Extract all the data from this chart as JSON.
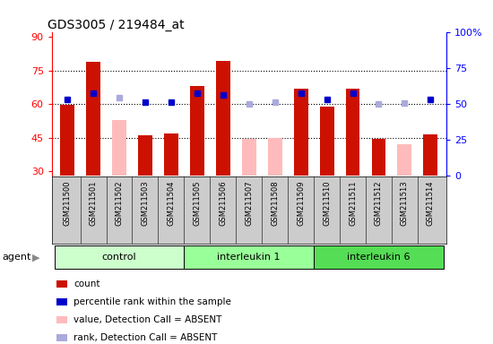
{
  "title": "GDS3005 / 219484_at",
  "samples": [
    "GSM211500",
    "GSM211501",
    "GSM211502",
    "GSM211503",
    "GSM211504",
    "GSM211505",
    "GSM211506",
    "GSM211507",
    "GSM211508",
    "GSM211509",
    "GSM211510",
    "GSM211511",
    "GSM211512",
    "GSM211513",
    "GSM211514"
  ],
  "count_values": [
    59.5,
    79.0,
    null,
    46.0,
    47.0,
    68.0,
    79.5,
    null,
    null,
    67.0,
    59.0,
    67.0,
    44.5,
    null,
    46.5
  ],
  "absent_value_values": [
    null,
    null,
    53.0,
    null,
    null,
    null,
    null,
    44.5,
    45.0,
    null,
    null,
    null,
    null,
    42.0,
    null
  ],
  "percentile_rank_present": [
    62.0,
    65.0,
    null,
    61.0,
    61.0,
    65.0,
    64.0,
    null,
    null,
    65.0,
    62.0,
    65.0,
    null,
    null,
    62.0
  ],
  "percentile_rank_absent": [
    null,
    null,
    63.0,
    null,
    null,
    null,
    null,
    60.0,
    61.0,
    null,
    null,
    null,
    60.0,
    60.5,
    null
  ],
  "groups": [
    {
      "label": "control",
      "start": 0,
      "end": 5,
      "color": "#ccffcc"
    },
    {
      "label": "interleukin 1",
      "start": 5,
      "end": 10,
      "color": "#99ff99"
    },
    {
      "label": "interleukin 6",
      "start": 10,
      "end": 15,
      "color": "#55dd55"
    }
  ],
  "ylim_left": [
    28,
    92
  ],
  "ylim_right": [
    0,
    100
  ],
  "yticks_left": [
    30,
    45,
    60,
    75,
    90
  ],
  "yticks_right": [
    0,
    25,
    50,
    75,
    100
  ],
  "ytick_labels_right": [
    "0",
    "25",
    "50",
    "75",
    "100%"
  ],
  "dotted_lines": [
    45,
    60,
    75
  ],
  "bar_width": 0.55,
  "count_color": "#cc1100",
  "absent_value_color": "#ffbbbb",
  "rank_present_color": "#0000cc",
  "rank_absent_color": "#aaaadd",
  "bg_color": "#ffffff",
  "xticklabel_bg": "#cccccc",
  "agent_label": "agent",
  "legend_items": [
    {
      "color": "#cc1100",
      "label": "count"
    },
    {
      "color": "#0000cc",
      "label": "percentile rank within the sample"
    },
    {
      "color": "#ffbbbb",
      "label": "value, Detection Call = ABSENT"
    },
    {
      "color": "#aaaadd",
      "label": "rank, Detection Call = ABSENT"
    }
  ]
}
